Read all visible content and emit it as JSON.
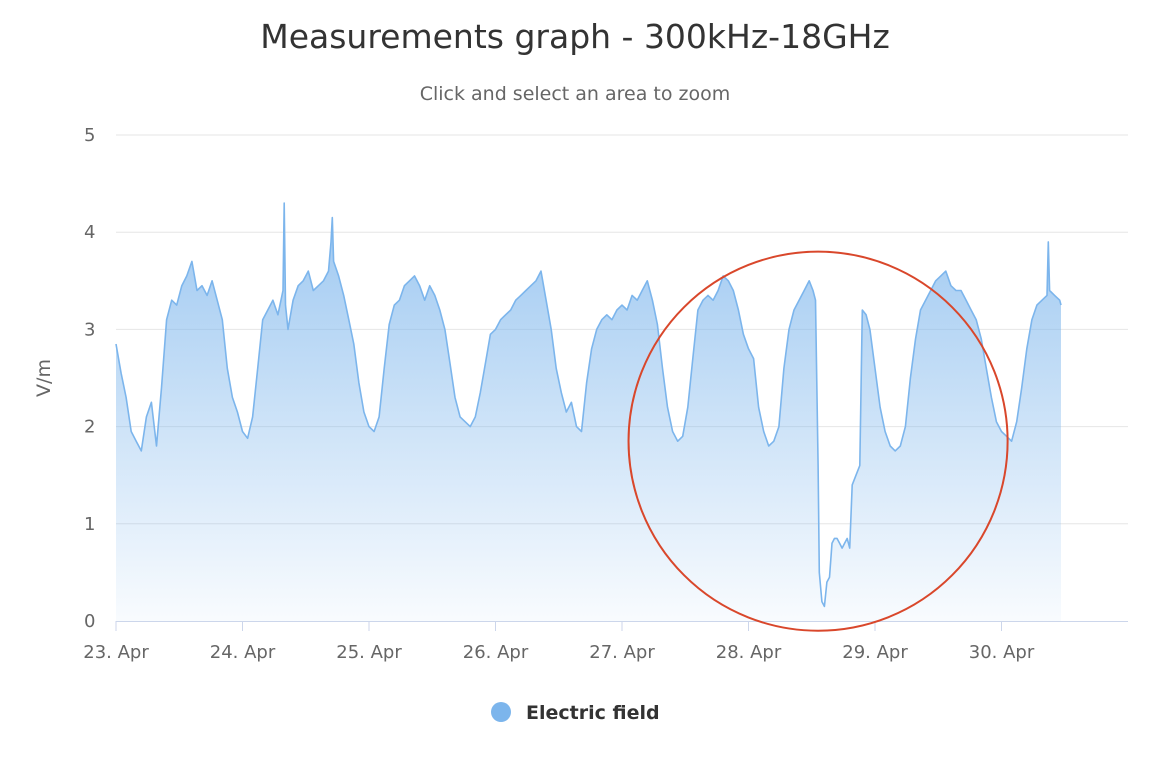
{
  "chart_data": {
    "type": "area",
    "title": "Measurements graph - 300kHz-18GHz",
    "subtitle": "Click and select an area to zoom",
    "xlabel": "",
    "ylabel": "V/m",
    "ylim": [
      0,
      5
    ],
    "yticks": [
      "0",
      "1",
      "2",
      "3",
      "4",
      "5"
    ],
    "xlim": [
      23.0,
      31.0
    ],
    "x_categories": [
      "23. Apr",
      "24. Apr",
      "25. Apr",
      "26. Apr",
      "27. Apr",
      "28. Apr",
      "29. Apr",
      "30. Apr"
    ],
    "grid": true,
    "legend": "bottom-center",
    "series": [
      {
        "name": "Electric field",
        "color": "#7cb5ec",
        "x": [
          23.0,
          23.04,
          23.08,
          23.12,
          23.16,
          23.2,
          23.24,
          23.28,
          23.32,
          23.36,
          23.4,
          23.44,
          23.48,
          23.52,
          23.56,
          23.6,
          23.64,
          23.68,
          23.72,
          23.76,
          23.8,
          23.84,
          23.88,
          23.92,
          23.96,
          24.0,
          24.04,
          24.08,
          24.12,
          24.16,
          24.2,
          24.24,
          24.28,
          24.32,
          24.33,
          24.34,
          24.36,
          24.4,
          24.44,
          24.48,
          24.52,
          24.56,
          24.6,
          24.64,
          24.68,
          24.7,
          24.71,
          24.72,
          24.76,
          24.8,
          24.84,
          24.88,
          24.92,
          24.96,
          25.0,
          25.04,
          25.08,
          25.12,
          25.16,
          25.2,
          25.24,
          25.28,
          25.32,
          25.36,
          25.4,
          25.44,
          25.48,
          25.52,
          25.56,
          25.6,
          25.64,
          25.68,
          25.72,
          25.76,
          25.8,
          25.84,
          25.88,
          25.92,
          25.96,
          26.0,
          26.04,
          26.08,
          26.12,
          26.16,
          26.2,
          26.24,
          26.28,
          26.32,
          26.36,
          26.4,
          26.44,
          26.48,
          26.52,
          26.56,
          26.6,
          26.64,
          26.68,
          26.72,
          26.76,
          26.8,
          26.84,
          26.88,
          26.92,
          26.96,
          27.0,
          27.04,
          27.08,
          27.12,
          27.16,
          27.2,
          27.24,
          27.28,
          27.32,
          27.36,
          27.4,
          27.44,
          27.48,
          27.52,
          27.56,
          27.6,
          27.64,
          27.68,
          27.72,
          27.76,
          27.8,
          27.84,
          27.88,
          27.92,
          27.96,
          28.0,
          28.04,
          28.08,
          28.12,
          28.16,
          28.2,
          28.24,
          28.28,
          28.32,
          28.36,
          28.4,
          28.44,
          28.48,
          28.51,
          28.53,
          28.55,
          28.56,
          28.58,
          28.6,
          28.62,
          28.64,
          28.66,
          28.68,
          28.7,
          28.72,
          28.74,
          28.76,
          28.78,
          28.8,
          28.82,
          28.85,
          28.88,
          28.9,
          28.93,
          28.96,
          29.0,
          29.04,
          29.08,
          29.12,
          29.16,
          29.2,
          29.24,
          29.28,
          29.32,
          29.36,
          29.4,
          29.44,
          29.48,
          29.52,
          29.56,
          29.6,
          29.64,
          29.68,
          29.72,
          29.76,
          29.8,
          29.84,
          29.88,
          29.92,
          29.96,
          30.0,
          30.04,
          30.08,
          30.12,
          30.16,
          30.2,
          30.24,
          30.28,
          30.32,
          30.36,
          30.37,
          30.38,
          30.42,
          30.46,
          30.47
        ],
        "values": [
          2.85,
          2.55,
          2.3,
          1.95,
          1.85,
          1.75,
          2.1,
          2.25,
          1.8,
          2.4,
          3.1,
          3.3,
          3.25,
          3.45,
          3.55,
          3.7,
          3.4,
          3.45,
          3.35,
          3.5,
          3.3,
          3.1,
          2.6,
          2.3,
          2.15,
          1.95,
          1.88,
          2.1,
          2.6,
          3.1,
          3.2,
          3.3,
          3.15,
          3.4,
          4.3,
          3.25,
          3.0,
          3.3,
          3.45,
          3.5,
          3.6,
          3.4,
          3.45,
          3.5,
          3.6,
          3.9,
          4.15,
          3.7,
          3.55,
          3.35,
          3.1,
          2.85,
          2.45,
          2.15,
          2.0,
          1.95,
          2.1,
          2.6,
          3.05,
          3.25,
          3.3,
          3.45,
          3.5,
          3.55,
          3.45,
          3.3,
          3.45,
          3.35,
          3.2,
          3.0,
          2.65,
          2.3,
          2.1,
          2.05,
          2.0,
          2.1,
          2.35,
          2.65,
          2.95,
          3.0,
          3.1,
          3.15,
          3.2,
          3.3,
          3.35,
          3.4,
          3.45,
          3.5,
          3.6,
          3.3,
          3.0,
          2.6,
          2.35,
          2.15,
          2.25,
          2.0,
          1.95,
          2.45,
          2.8,
          3.0,
          3.1,
          3.15,
          3.1,
          3.2,
          3.25,
          3.2,
          3.35,
          3.3,
          3.4,
          3.5,
          3.3,
          3.05,
          2.6,
          2.2,
          1.95,
          1.85,
          1.9,
          2.2,
          2.7,
          3.2,
          3.3,
          3.35,
          3.3,
          3.4,
          3.55,
          3.5,
          3.4,
          3.2,
          2.95,
          2.8,
          2.7,
          2.2,
          1.95,
          1.8,
          1.85,
          2.0,
          2.6,
          3.0,
          3.2,
          3.3,
          3.4,
          3.5,
          3.4,
          3.3,
          1.6,
          0.5,
          0.2,
          0.15,
          0.4,
          0.45,
          0.8,
          0.85,
          0.85,
          0.8,
          0.75,
          0.8,
          0.85,
          0.75,
          1.4,
          1.5,
          1.6,
          3.2,
          3.15,
          3.0,
          2.6,
          2.2,
          1.95,
          1.8,
          1.75,
          1.8,
          2.0,
          2.5,
          2.9,
          3.2,
          3.3,
          3.4,
          3.5,
          3.55,
          3.6,
          3.45,
          3.4,
          3.4,
          3.3,
          3.2,
          3.1,
          2.9,
          2.6,
          2.3,
          2.05,
          1.95,
          1.9,
          1.85,
          2.05,
          2.4,
          2.8,
          3.1,
          3.25,
          3.3,
          3.35,
          3.9,
          3.4,
          3.35,
          3.3,
          3.25
        ]
      }
    ],
    "annotation": {
      "shape": "circle",
      "color": "#d9472b",
      "center_x": 28.55,
      "center_y": 1.85,
      "label": ""
    }
  }
}
